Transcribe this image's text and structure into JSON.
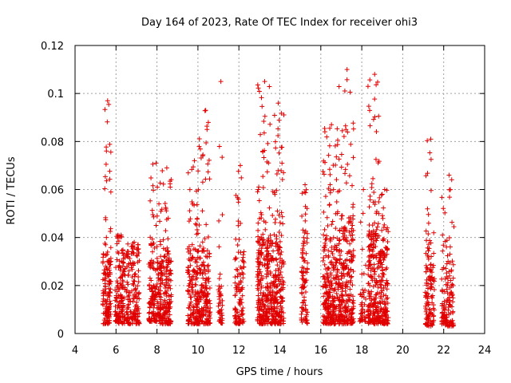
{
  "chart_data": {
    "type": "scatter",
    "title": "Day 164 of 2023, Rate Of TEC Index for receiver ohi3",
    "xlabel": "GPS time / hours",
    "ylabel": "ROTI / TECUs",
    "xlim": [
      4,
      24
    ],
    "ylim": [
      0,
      0.12
    ],
    "xticks": [
      4,
      6,
      8,
      10,
      12,
      14,
      16,
      18,
      20,
      22,
      24
    ],
    "yticks": [
      0,
      0.02,
      0.04,
      0.06,
      0.08,
      0.1,
      0.12
    ],
    "ytick_labels": [
      "0",
      "0.02",
      "0.04",
      "0.06",
      "0.08",
      "0.1",
      "0.12"
    ],
    "grid": true,
    "marker": "+",
    "color": "#e00000",
    "series": [
      {
        "clusters": [
          {
            "x": [
              5.35,
              5.75
            ],
            "y_dense": [
              0.004,
              0.035
            ],
            "y_max": 0.097,
            "n": 150
          },
          {
            "x": [
              5.95,
              6.45
            ],
            "y_dense": [
              0.004,
              0.03
            ],
            "y_max": 0.041,
            "n": 140
          },
          {
            "x": [
              6.5,
              7.15
            ],
            "y_dense": [
              0.004,
              0.033
            ],
            "y_max": 0.038,
            "n": 160
          },
          {
            "x": [
              7.6,
              8.2
            ],
            "y_dense": [
              0.005,
              0.03
            ],
            "y_max": 0.071,
            "n": 170
          },
          {
            "x": [
              8.15,
              8.7
            ],
            "y_dense": [
              0.004,
              0.034
            ],
            "y_max": 0.069,
            "n": 170
          },
          {
            "x": [
              9.5,
              10.05
            ],
            "y_dense": [
              0.004,
              0.035
            ],
            "y_max": 0.072,
            "n": 170
          },
          {
            "x": [
              10.05,
              10.6
            ],
            "y_dense": [
              0.004,
              0.035
            ],
            "y_max": 0.093,
            "n": 170
          },
          {
            "x": [
              11.0,
              11.2
            ],
            "y_dense": [
              0.004,
              0.02
            ],
            "y_max": 0.105,
            "n": 45
          },
          {
            "x": [
              11.8,
              12.25
            ],
            "y_dense": [
              0.004,
              0.032
            ],
            "y_max": 0.07,
            "n": 110
          },
          {
            "x": [
              12.9,
              13.5
            ],
            "y_dense": [
              0.004,
              0.04
            ],
            "y_max": 0.105,
            "n": 240
          },
          {
            "x": [
              13.5,
              14.2
            ],
            "y_dense": [
              0.004,
              0.04
            ],
            "y_max": 0.096,
            "n": 240
          },
          {
            "x": [
              15.05,
              15.35
            ],
            "y_dense": [
              0.004,
              0.04
            ],
            "y_max": 0.062,
            "n": 90
          },
          {
            "x": [
              16.1,
              16.8
            ],
            "y_dense": [
              0.004,
              0.04
            ],
            "y_max": 0.087,
            "n": 250
          },
          {
            "x": [
              16.8,
              17.6
            ],
            "y_dense": [
              0.004,
              0.045
            ],
            "y_max": 0.11,
            "n": 280
          },
          {
            "x": [
              17.9,
              18.2
            ],
            "y_dense": [
              0.005,
              0.02
            ],
            "y_max": 0.06,
            "n": 40
          },
          {
            "x": [
              18.3,
              18.85
            ],
            "y_dense": [
              0.004,
              0.045
            ],
            "y_max": 0.108,
            "n": 220
          },
          {
            "x": [
              18.85,
              19.3
            ],
            "y_dense": [
              0.004,
              0.035
            ],
            "y_max": 0.06,
            "n": 140
          },
          {
            "x": [
              21.1,
              21.55
            ],
            "y_dense": [
              0.003,
              0.035
            ],
            "y_max": 0.081,
            "n": 120
          },
          {
            "x": [
              21.9,
              22.5
            ],
            "y_dense": [
              0.003,
              0.03
            ],
            "y_max": 0.066,
            "n": 140
          }
        ]
      }
    ]
  }
}
